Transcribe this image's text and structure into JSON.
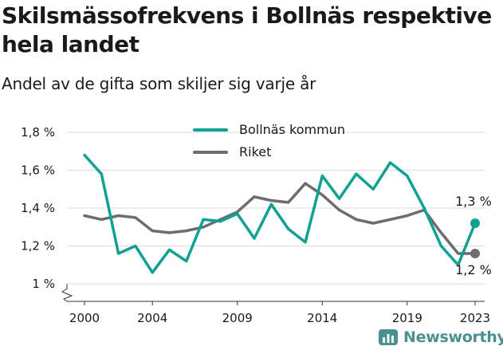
{
  "title": "Skilsmässofrekvens i Bollnäs respektive hela landet",
  "subtitle": "Andel av de gifta som skiljer sig varje år",
  "logo_text": "Newsworthy",
  "colors": {
    "bollnas": "#0fa292",
    "riket": "#6d6d70",
    "grid": "#dcdcdc",
    "axis": "#333333",
    "logo": "#4a8f91"
  },
  "chart_data": {
    "type": "line",
    "title": "Skilsmässofrekvens i Bollnäs respektive hela landet",
    "subtitle": "Andel av de gifta som skiljer sig varje år",
    "x": [
      2000,
      2001,
      2002,
      2003,
      2004,
      2005,
      2006,
      2007,
      2008,
      2009,
      2010,
      2011,
      2012,
      2013,
      2014,
      2015,
      2016,
      2017,
      2018,
      2019,
      2020,
      2021,
      2022,
      2023
    ],
    "xticks": [
      "2000",
      "2004",
      "2009",
      "2014",
      "2019",
      "2023"
    ],
    "yticks": [
      "1 %",
      "1,2 %",
      "1,4 %",
      "1,6 %",
      "1,8 %"
    ],
    "ylim": [
      1.0,
      1.8
    ],
    "y_axis_broken": true,
    "grid": true,
    "legend_position": "top-center",
    "series": [
      {
        "name": "Bollnäs kommun",
        "color": "#0fa292",
        "values": [
          1.68,
          1.58,
          1.16,
          1.2,
          1.06,
          1.18,
          1.12,
          1.34,
          1.33,
          1.37,
          1.24,
          1.42,
          1.29,
          1.22,
          1.57,
          1.45,
          1.58,
          1.5,
          1.64,
          1.57,
          1.4,
          1.2,
          1.1,
          1.32
        ],
        "end_label": "1,3 %"
      },
      {
        "name": "Riket",
        "color": "#6d6d70",
        "values": [
          1.36,
          1.34,
          1.36,
          1.35,
          1.28,
          1.27,
          1.28,
          1.3,
          1.34,
          1.38,
          1.46,
          1.44,
          1.43,
          1.53,
          1.47,
          1.39,
          1.34,
          1.32,
          1.34,
          1.36,
          1.39,
          1.27,
          1.16,
          1.16
        ],
        "end_label": "1,2 %"
      }
    ]
  }
}
